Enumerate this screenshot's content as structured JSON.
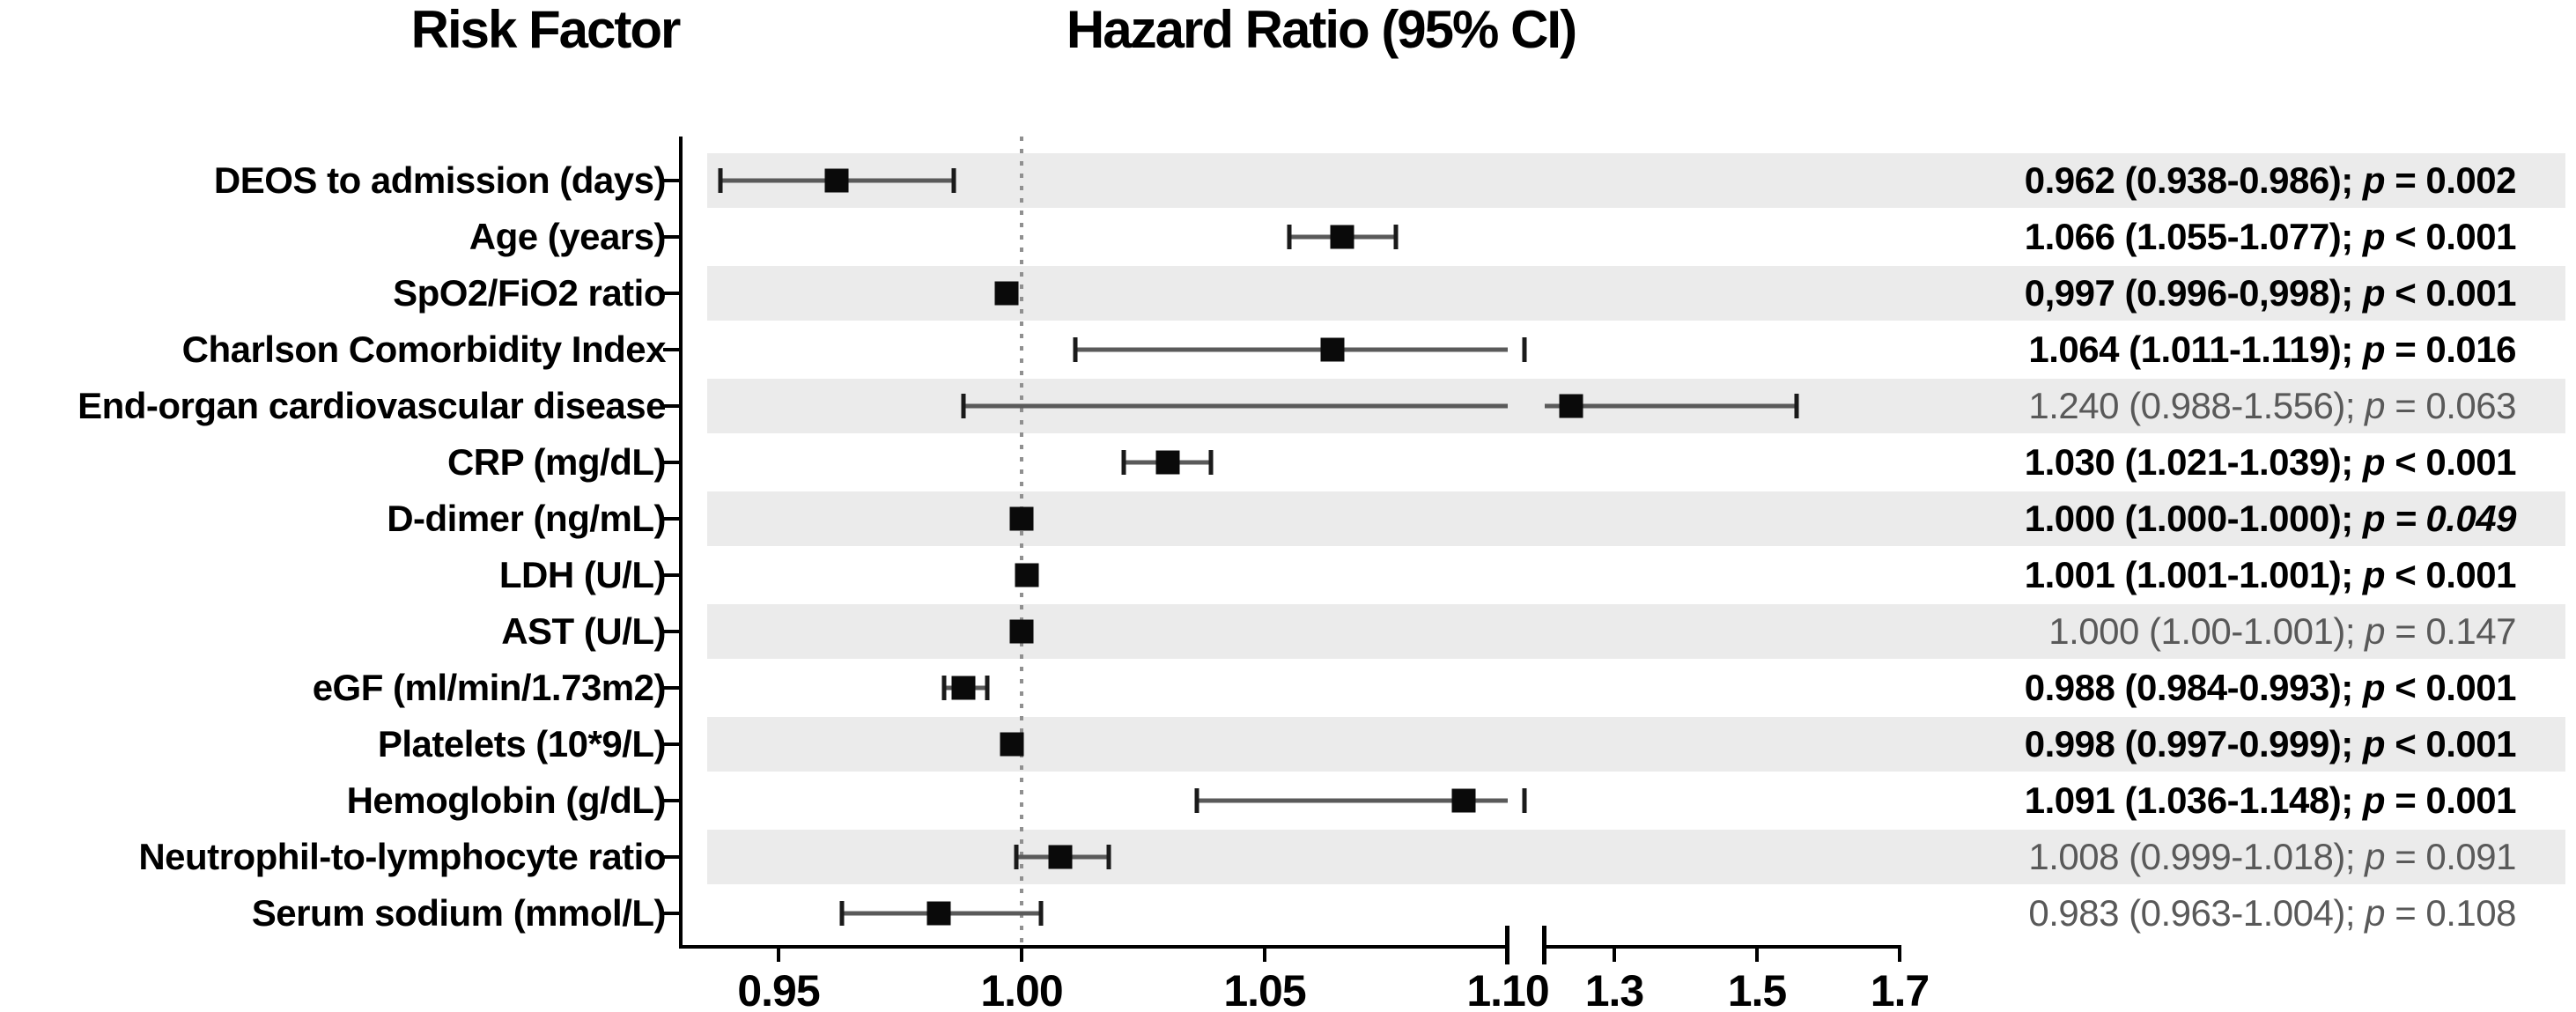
{
  "header": {
    "risk_factor": "Risk Factor",
    "hazard_ratio": "Hazard Ratio (95% CI)"
  },
  "chart_data": {
    "type": "forest",
    "title_left_column": "Risk Factor",
    "title_right_column": "Hazard Ratio (95% CI)",
    "x_axis": {
      "ticks": [
        {
          "v": 0.95,
          "label": "0.95"
        },
        {
          "v": 1.0,
          "label": "1.00"
        },
        {
          "v": 1.05,
          "label": "1.05"
        },
        {
          "v": 1.1,
          "label": "1.10"
        },
        {
          "v": 1.3,
          "label": "1.3"
        },
        {
          "v": 1.5,
          "label": "1.5"
        },
        {
          "v": 1.7,
          "label": "1.7"
        }
      ],
      "reference_line": 1.0,
      "axis_break_between": [
        1.1,
        1.3
      ],
      "left_segment_range": [
        0.93,
        1.1
      ],
      "right_segment_range": [
        1.2,
        1.705
      ]
    },
    "rows": [
      {
        "label": "DEOS to admission (days)",
        "hr": 0.962,
        "lo": 0.938,
        "hi": 0.986,
        "text": "0.962 (0.938-0.986)",
        "p": " = 0.002",
        "significant": true,
        "p_italic_all": false
      },
      {
        "label": "Age (years)",
        "hr": 1.066,
        "lo": 1.055,
        "hi": 1.077,
        "text": "1.066 (1.055-1.077)",
        "p": " < 0.001",
        "significant": true,
        "p_italic_all": false
      },
      {
        "label": "SpO2/FiO2 ratio",
        "hr": 0.997,
        "lo": 0.996,
        "hi": 0.998,
        "text": "0,997 (0.996-0,998)",
        "p": " < 0.001",
        "significant": true,
        "p_italic_all": false
      },
      {
        "label": "Charlson Comorbidity Index",
        "hr": 1.064,
        "lo": 1.011,
        "hi": 1.119,
        "text": "1.064 (1.011-1.119)",
        "p": " = 0.016",
        "significant": true,
        "p_italic_all": false
      },
      {
        "label": "End-organ cardiovascular disease",
        "hr": 1.24,
        "lo": 0.988,
        "hi": 1.556,
        "text": "1.240 (0.988-1.556)",
        "p": " = 0.063",
        "significant": false,
        "p_italic_all": false
      },
      {
        "label": "CRP (mg/dL)",
        "hr": 1.03,
        "lo": 1.021,
        "hi": 1.039,
        "text": "1.030 (1.021-1.039)",
        "p": " < 0.001",
        "significant": true,
        "p_italic_all": false
      },
      {
        "label": "D-dimer (ng/mL)",
        "hr": 1.0,
        "lo": 1.0,
        "hi": 1.0,
        "text": "1.000 (1.000-1.000)",
        "p": " = 0.049",
        "significant": true,
        "p_italic_all": true
      },
      {
        "label": "LDH (U/L)",
        "hr": 1.001,
        "lo": 1.001,
        "hi": 1.001,
        "text": "1.001 (1.001-1.001)",
        "p": " < 0.001",
        "significant": true,
        "p_italic_all": false
      },
      {
        "label": "AST (U/L)",
        "hr": 1.0,
        "lo": 1.0,
        "hi": 1.001,
        "text": "1.000 (1.00-1.001)",
        "p": " = 0.147",
        "significant": false,
        "p_italic_all": false
      },
      {
        "label": "eGF (ml/min/1.73m2)",
        "hr": 0.988,
        "lo": 0.984,
        "hi": 0.993,
        "text": "0.988 (0.984-0.993)",
        "p": " < 0.001",
        "significant": true,
        "p_italic_all": false
      },
      {
        "label": "Platelets (10*9/L)",
        "hr": 0.998,
        "lo": 0.997,
        "hi": 0.999,
        "text": "0.998 (0.997-0.999)",
        "p": " < 0.001",
        "significant": true,
        "p_italic_all": false
      },
      {
        "label": "Hemoglobin (g/dL)",
        "hr": 1.091,
        "lo": 1.036,
        "hi": 1.148,
        "text": "1.091 (1.036-1.148)",
        "p": " = 0.001",
        "significant": true,
        "p_italic_all": false
      },
      {
        "label": "Neutrophil-to-lymphocyte ratio",
        "hr": 1.008,
        "lo": 0.999,
        "hi": 1.018,
        "text": "1.008 (0.999-1.018)",
        "p": " = 0.091",
        "significant": false,
        "p_italic_all": false
      },
      {
        "label": "Serum sodium (mmol/L)",
        "hr": 0.983,
        "lo": 0.963,
        "hi": 1.004,
        "text": "0.983 (0.963-1.004)",
        "p": " = 0.108",
        "significant": false,
        "p_italic_all": false
      }
    ],
    "colors": {
      "band": "#ebebeb",
      "ci_line": "#5a5a5a",
      "ci_cap": "#1a1a1a",
      "marker": "#0a0a0a",
      "reference_line": "#909090",
      "text": "#000000",
      "nonsignificant_text": "#595959"
    },
    "marker_shape": "square",
    "p_symbol": "p"
  }
}
